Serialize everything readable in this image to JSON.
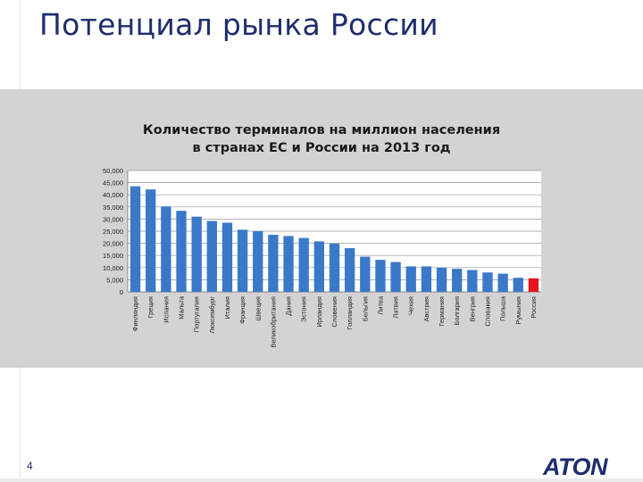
{
  "slide": {
    "title": "Потенциал рынка России",
    "page_number": "4",
    "logo_text": "ATON"
  },
  "colors": {
    "bar": "#3a78c9",
    "highlight_bar": "#e8141e",
    "title": "#1f2d6d",
    "panel": "#d3d3d3"
  },
  "chart_data": {
    "type": "bar",
    "title_lines": [
      "Количество терминалов на миллион населения",
      "в странах ЕС и России на 2013 год"
    ],
    "categories": [
      "Финляндия",
      "Греция",
      "Испания",
      "Мальта",
      "Португалия",
      "Люксембург",
      "Италия",
      "Франция",
      "Швеция",
      "Великобритания",
      "Дания",
      "Эстония",
      "Ирландия",
      "Словения",
      "Голландия",
      "Бельгия",
      "Литва",
      "Латвия",
      "Чехия",
      "Австрия",
      "Германия",
      "Болгария",
      "Венгрия",
      "Словакия",
      "Польша",
      "Румыния",
      "Россия"
    ],
    "values": [
      43500,
      42200,
      35200,
      33400,
      31000,
      29200,
      28500,
      25600,
      25000,
      23500,
      23000,
      22200,
      20800,
      19900,
      18000,
      14500,
      13200,
      12300,
      10500,
      10500,
      10000,
      9500,
      9000,
      8000,
      7500,
      5800,
      5600
    ],
    "highlight": "Россия",
    "ylim": [
      0,
      50000
    ],
    "yticks": [
      "0",
      "5,000",
      "10,000",
      "15,000",
      "20,000",
      "25,000",
      "30,000",
      "35,000",
      "40,000",
      "45,000",
      "50,000"
    ],
    "grid": true,
    "legend": "none"
  }
}
